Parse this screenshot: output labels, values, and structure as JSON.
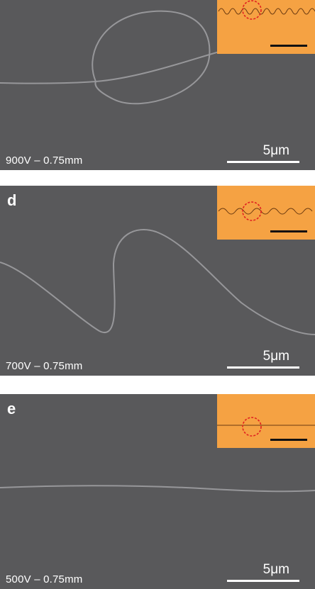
{
  "panels": [
    {
      "letter": "",
      "condition": "900V – 0.75mm",
      "scale": "5μm",
      "fiber": "loop"
    },
    {
      "letter": "d",
      "condition": "700V – 0.75mm",
      "scale": "5μm",
      "fiber": "wave"
    },
    {
      "letter": "e",
      "condition": "500V – 0.75mm",
      "scale": "5μm",
      "fiber": "straight"
    }
  ],
  "colors": {
    "sem_background": "#59595b",
    "fiber": "#9a9a9d",
    "inset_background": "#f5a243",
    "inset_circle": "#e02020",
    "scale_bar": "#ffffff"
  }
}
